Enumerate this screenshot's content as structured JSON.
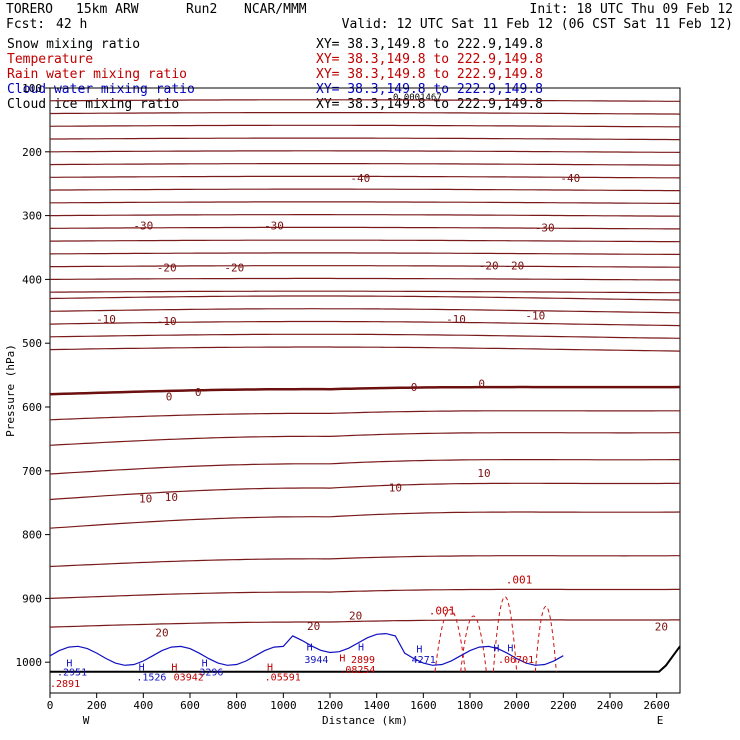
{
  "header": {
    "model": "TORERO",
    "resolution": "15km ARW",
    "run": "Run2",
    "org": "NCAR/MMM",
    "init": "Init: 18 UTC Thu 09 Feb 12",
    "fcst_label": "Fcst:",
    "fcst_value": "42 h",
    "valid": "Valid: 12 UTC Sat 11 Feb 12 (06 CST Sat 11 Feb 12)"
  },
  "legend": [
    {
      "name": "Snow mixing ratio",
      "color": "#000000",
      "xy": "XY=  38.3,149.8 to 222.9,149.8"
    },
    {
      "name": "Temperature",
      "color": "#c00000",
      "xy": "XY=  38.3,149.8 to 222.9,149.8"
    },
    {
      "name": "Rain water mixing ratio",
      "color": "#c00000",
      "xy": "XY=  38.3,149.8 to 222.9,149.8"
    },
    {
      "name": "Cloud water mixing ratio",
      "color": "#0000c0",
      "xy": "XY=  38.3,149.8 to 222.9,149.8"
    },
    {
      "name": "Cloud ice mixing ratio",
      "color": "#000000",
      "xy": "XY=  38.3,149.8 to 222.9,149.8"
    }
  ],
  "overlap_text": "0.0001467",
  "chart_data": {
    "type": "line",
    "xlabel": "Distance (km)",
    "ylabel": "Pressure (hPa)",
    "xlim": [
      0,
      2700
    ],
    "ylim": [
      1050,
      100
    ],
    "x_ticks": [
      "0",
      "200",
      "400",
      "600",
      "800",
      "1000",
      "1200",
      "1400",
      "1600",
      "1800",
      "2000",
      "2200",
      "2400",
      "2600"
    ],
    "y_ticks": [
      "100",
      "200",
      "300",
      "400",
      "500",
      "600",
      "700",
      "800",
      "900",
      "1000"
    ],
    "x_ends": {
      "left": "W",
      "right": "E"
    },
    "isotherm_labels": [
      {
        "text": "-40",
        "x": 1330,
        "p": 243
      },
      {
        "text": "-40",
        "x": 2230,
        "p": 243
      },
      {
        "text": "-30",
        "x": 400,
        "p": 317
      },
      {
        "text": "-30",
        "x": 960,
        "p": 317
      },
      {
        "text": "-30",
        "x": 2120,
        "p": 320
      },
      {
        "text": "-20",
        "x": 500,
        "p": 383
      },
      {
        "text": "-20",
        "x": 790,
        "p": 383
      },
      {
        "text": "-20",
        "x": 1880,
        "p": 380
      },
      {
        "text": "-20",
        "x": 1990,
        "p": 380
      },
      {
        "text": "-10",
        "x": 240,
        "p": 464
      },
      {
        "text": "-10",
        "x": 500,
        "p": 467
      },
      {
        "text": "-10",
        "x": 1740,
        "p": 464
      },
      {
        "text": "-10",
        "x": 2080,
        "p": 458
      },
      {
        "text": "0",
        "x": 510,
        "p": 585
      },
      {
        "text": "0",
        "x": 635,
        "p": 578
      },
      {
        "text": "0",
        "x": 1560,
        "p": 570
      },
      {
        "text": "0",
        "x": 1850,
        "p": 565
      },
      {
        "text": "10",
        "x": 410,
        "p": 745
      },
      {
        "text": "10",
        "x": 520,
        "p": 743
      },
      {
        "text": "10",
        "x": 1480,
        "p": 728
      },
      {
        "text": "10",
        "x": 1860,
        "p": 705
      },
      {
        "text": "20",
        "x": 480,
        "p": 955
      },
      {
        "text": "20",
        "x": 1130,
        "p": 945
      },
      {
        "text": "20",
        "x": 1310,
        "p": 928
      },
      {
        "text": "20",
        "x": 2620,
        "p": 946
      }
    ],
    "rain_labels": [
      {
        "text": ".001",
        "x": 1680,
        "p": 925
      },
      {
        "text": ".001",
        "x": 2010,
        "p": 877
      }
    ],
    "cloud_labels": [
      {
        "text": "H",
        "x": 70,
        "p": 1007
      },
      {
        "text": ".2951",
        "x": 30,
        "p": 1021
      },
      {
        "text": "H",
        "x": 380,
        "p": 1013
      },
      {
        "text": ".1526",
        "x": 370,
        "p": 1029
      },
      {
        "text": "H",
        "x": 650,
        "p": 1007
      },
      {
        "text": "3296",
        "x": 640,
        "p": 1021
      },
      {
        "text": "H",
        "x": 1100,
        "p": 982
      },
      {
        "text": "3944",
        "x": 1090,
        "p": 1001
      },
      {
        "text": "H",
        "x": 1320,
        "p": 982
      },
      {
        "text": "H",
        "x": 1570,
        "p": 985
      },
      {
        "text": "4271",
        "x": 1550,
        "p": 1001
      },
      {
        "text": "H",
        "x": 1900,
        "p": 983
      },
      {
        "text": "H",
        "x": 1960,
        "p": 983
      }
    ],
    "rain_max_labels": [
      {
        "text": "H",
        "x": 520,
        "p": 1013
      },
      {
        "text": "03942",
        "x": 530,
        "p": 1029
      },
      {
        "text": "H",
        "x": 930,
        "p": 1013
      },
      {
        "text": ".05591",
        "x": 920,
        "p": 1029
      },
      {
        "text": "H",
        "x": 1240,
        "p": 999
      },
      {
        "text": "2899",
        "x": 1290,
        "p": 1001
      },
      {
        "text": ".08254",
        "x": 1240,
        "p": 1017
      },
      {
        "text": ".06701",
        "x": 1920,
        "p": 1001
      },
      {
        "text": ".2891",
        "x": 0,
        "p": 1039
      }
    ]
  }
}
